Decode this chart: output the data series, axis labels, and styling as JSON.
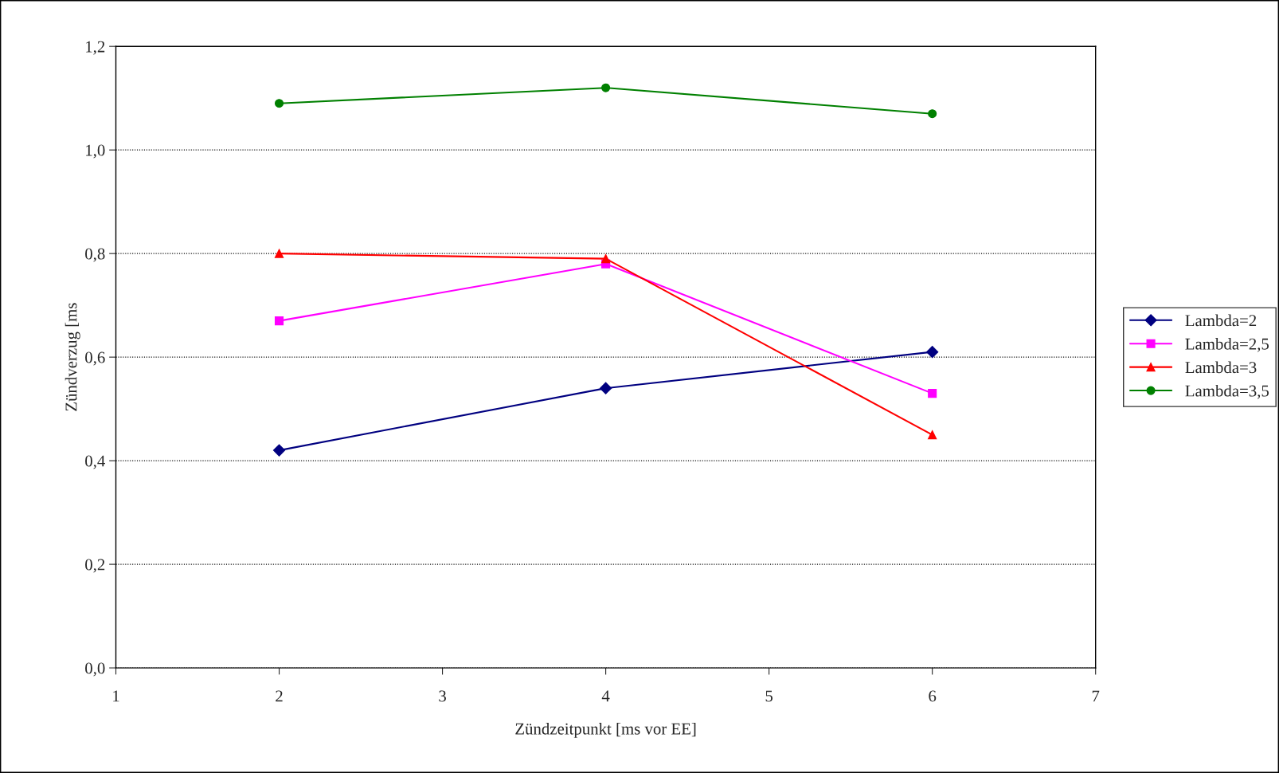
{
  "chart_data": {
    "type": "line",
    "xlabel": "Zündzeitpunkt [ms vor EE]",
    "ylabel": "Zündverzug [ms",
    "xlim": [
      1,
      7
    ],
    "xticks": [
      1,
      2,
      3,
      4,
      5,
      6,
      7
    ],
    "ylim": [
      0,
      1.2
    ],
    "yticks": [
      {
        "value": 0,
        "label": "0,0"
      },
      {
        "value": 0.2,
        "label": "0,2"
      },
      {
        "value": 0.4,
        "label": "0,4"
      },
      {
        "value": 0.6,
        "label": "0,6"
      },
      {
        "value": 0.8,
        "label": "0,8"
      },
      {
        "value": 1.0,
        "label": "1,0"
      },
      {
        "value": 1.2,
        "label": "1,2"
      }
    ],
    "x": [
      2,
      4,
      6
    ],
    "grid": "y",
    "legend": "right",
    "series": [
      {
        "name": "Lambda=2",
        "color": "#000080",
        "values": [
          0.42,
          0.54,
          0.61
        ],
        "marker": "diamond"
      },
      {
        "name": "Lambda=2,5",
        "color": "#ff00ff",
        "values": [
          0.67,
          0.78,
          0.53
        ],
        "marker": "square"
      },
      {
        "name": "Lambda=3",
        "color": "#ff0000",
        "values": [
          0.8,
          0.79,
          0.45
        ],
        "marker": "triangle"
      },
      {
        "name": "Lambda=3,5",
        "color": "#008000",
        "values": [
          1.09,
          1.12,
          1.07
        ],
        "marker": "circle"
      }
    ]
  }
}
